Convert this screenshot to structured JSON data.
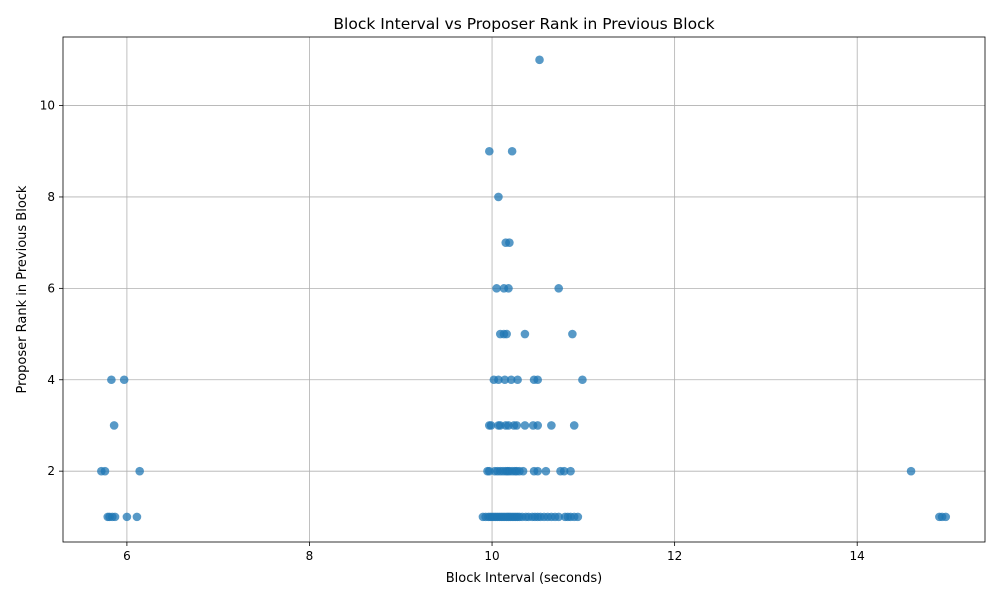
{
  "chart_data": {
    "type": "scatter",
    "title": "Block Interval vs Proposer Rank in Previous Block",
    "xlabel": "Block Interval (seconds)",
    "ylabel": "Proposer Rank in Previous Block",
    "xlim": [
      5.3,
      15.4
    ],
    "ylim": [
      0.45,
      11.5
    ],
    "xticks": [
      6,
      8,
      10,
      12,
      14
    ],
    "yticks": [
      2,
      4,
      6,
      8,
      10
    ],
    "grid": true,
    "marker_color": "#1f77b4",
    "marker_alpha": 0.75,
    "series": [
      {
        "points": [
          [
            10.52,
            11
          ],
          [
            9.97,
            9
          ],
          [
            10.22,
            9
          ],
          [
            10.07,
            8
          ],
          [
            10.15,
            7
          ],
          [
            10.19,
            7
          ],
          [
            10.05,
            6
          ],
          [
            10.13,
            6
          ],
          [
            10.18,
            6
          ],
          [
            10.73,
            6
          ],
          [
            10.09,
            5
          ],
          [
            10.13,
            5
          ],
          [
            10.16,
            5
          ],
          [
            10.36,
            5
          ],
          [
            10.88,
            5
          ],
          [
            5.83,
            4
          ],
          [
            5.97,
            4
          ],
          [
            10.02,
            4
          ],
          [
            10.07,
            4
          ],
          [
            10.14,
            4
          ],
          [
            10.21,
            4
          ],
          [
            10.28,
            4
          ],
          [
            10.46,
            4
          ],
          [
            10.5,
            4
          ],
          [
            10.99,
            4
          ],
          [
            5.86,
            3
          ],
          [
            9.97,
            3
          ],
          [
            9.99,
            3
          ],
          [
            10.07,
            3
          ],
          [
            10.09,
            3
          ],
          [
            10.15,
            3
          ],
          [
            10.18,
            3
          ],
          [
            10.24,
            3
          ],
          [
            10.27,
            3
          ],
          [
            10.36,
            3
          ],
          [
            10.45,
            3
          ],
          [
            10.5,
            3
          ],
          [
            10.65,
            3
          ],
          [
            10.9,
            3
          ],
          [
            5.72,
            2
          ],
          [
            5.76,
            2
          ],
          [
            6.14,
            2
          ],
          [
            9.95,
            2
          ],
          [
            9.97,
            2
          ],
          [
            10.03,
            2
          ],
          [
            10.06,
            2
          ],
          [
            10.09,
            2
          ],
          [
            10.12,
            2
          ],
          [
            10.15,
            2
          ],
          [
            10.17,
            2
          ],
          [
            10.19,
            2
          ],
          [
            10.22,
            2
          ],
          [
            10.25,
            2
          ],
          [
            10.27,
            2
          ],
          [
            10.3,
            2
          ],
          [
            10.34,
            2
          ],
          [
            10.46,
            2
          ],
          [
            10.5,
            2
          ],
          [
            10.59,
            2
          ],
          [
            10.75,
            2
          ],
          [
            10.79,
            2
          ],
          [
            10.86,
            2
          ],
          [
            14.59,
            2
          ],
          [
            5.79,
            1
          ],
          [
            5.81,
            1
          ],
          [
            5.84,
            1
          ],
          [
            5.87,
            1
          ],
          [
            6.0,
            1
          ],
          [
            6.11,
            1
          ],
          [
            9.9,
            1
          ],
          [
            9.93,
            1
          ],
          [
            9.96,
            1
          ],
          [
            9.98,
            1
          ],
          [
            10.0,
            1
          ],
          [
            10.02,
            1
          ],
          [
            10.04,
            1
          ],
          [
            10.06,
            1
          ],
          [
            10.08,
            1
          ],
          [
            10.1,
            1
          ],
          [
            10.12,
            1
          ],
          [
            10.14,
            1
          ],
          [
            10.16,
            1
          ],
          [
            10.18,
            1
          ],
          [
            10.2,
            1
          ],
          [
            10.22,
            1
          ],
          [
            10.24,
            1
          ],
          [
            10.26,
            1
          ],
          [
            10.28,
            1
          ],
          [
            10.3,
            1
          ],
          [
            10.33,
            1
          ],
          [
            10.37,
            1
          ],
          [
            10.4,
            1
          ],
          [
            10.44,
            1
          ],
          [
            10.47,
            1
          ],
          [
            10.5,
            1
          ],
          [
            10.53,
            1
          ],
          [
            10.57,
            1
          ],
          [
            10.61,
            1
          ],
          [
            10.65,
            1
          ],
          [
            10.69,
            1
          ],
          [
            10.73,
            1
          ],
          [
            10.8,
            1
          ],
          [
            10.83,
            1
          ],
          [
            10.86,
            1
          ],
          [
            10.9,
            1
          ],
          [
            10.94,
            1
          ],
          [
            14.9,
            1
          ],
          [
            14.93,
            1
          ],
          [
            14.97,
            1
          ]
        ]
      }
    ]
  }
}
